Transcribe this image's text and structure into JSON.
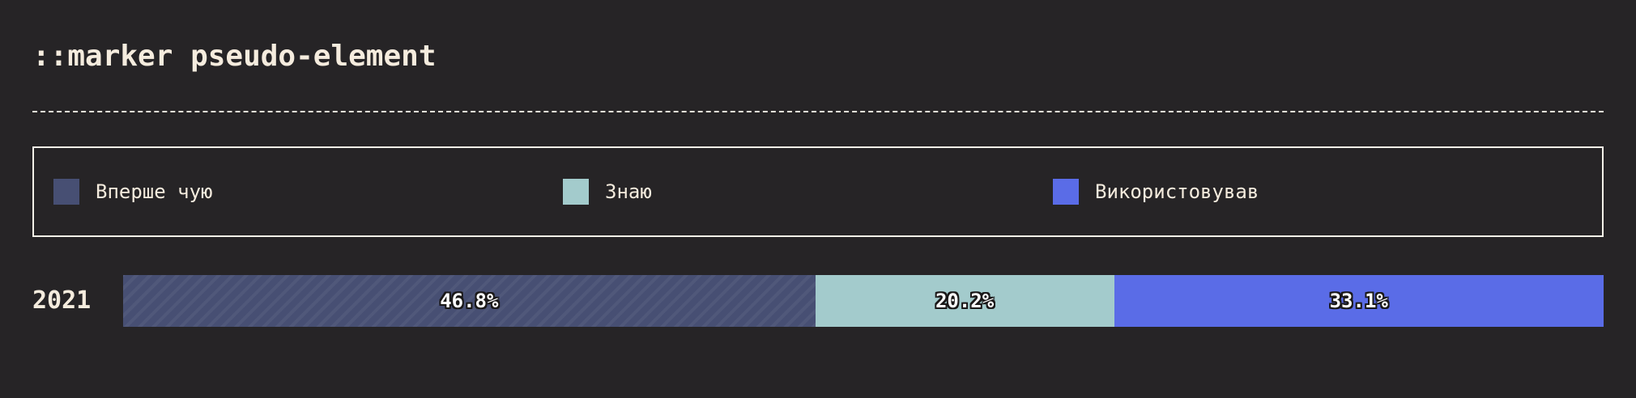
{
  "header": {
    "title": "::marker pseudo-element"
  },
  "legend": {
    "items": [
      {
        "label": "Вперше чую",
        "color": "#474f73"
      },
      {
        "label": "Знаю",
        "color": "#a3cbcc"
      },
      {
        "label": "Використовував",
        "color": "#5a6ce7"
      }
    ]
  },
  "chart_data": {
    "type": "bar",
    "orientation": "horizontal",
    "stacked": true,
    "categories": [
      "2021"
    ],
    "series": [
      {
        "name": "Вперше чую",
        "values": [
          46.8
        ],
        "label": "46.8%",
        "color": "#474f73"
      },
      {
        "name": "Знаю",
        "values": [
          20.2
        ],
        "label": "20.2%",
        "color": "#a3cbcc"
      },
      {
        "name": "Використовував",
        "values": [
          33.1
        ],
        "label": "33.1%",
        "color": "#5a6ce7"
      }
    ],
    "title": "::marker pseudo-element",
    "legend_position": "top"
  }
}
